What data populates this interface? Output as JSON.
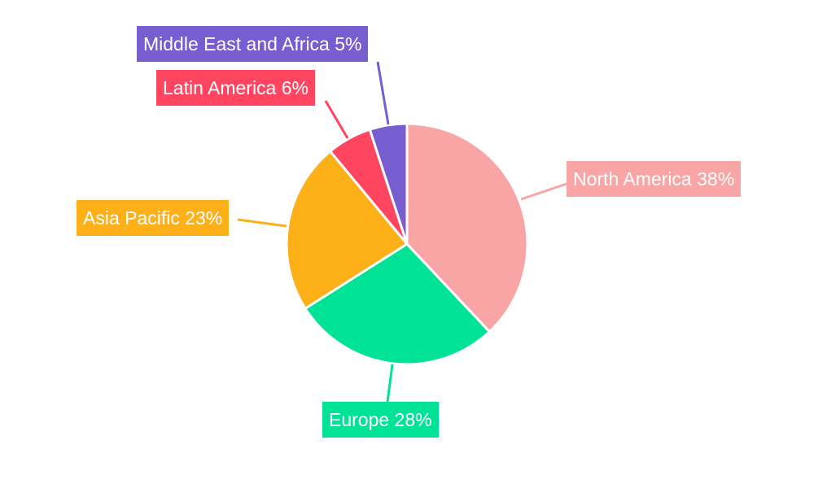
{
  "chart_data": {
    "type": "pie",
    "title": "",
    "start_angle": "12 o'clock, clockwise",
    "slices": [
      {
        "label": "North America",
        "value": 38,
        "text": "North America 38%",
        "color": "#F9A5A5"
      },
      {
        "label": "Europe",
        "value": 28,
        "text": "Europe 28%",
        "color": "#00E396"
      },
      {
        "label": "Asia Pacific",
        "value": 23,
        "text": "Asia Pacific 23%",
        "color": "#FEB019"
      },
      {
        "label": "Latin America",
        "value": 6,
        "text": "Latin America 6%",
        "color": "#FF4560"
      },
      {
        "label": "Middle East and Africa",
        "value": 5,
        "text": "Middle East and Africa 5%",
        "color": "#775DD0"
      }
    ],
    "legend": "none",
    "labels": "outside with leader lines"
  }
}
